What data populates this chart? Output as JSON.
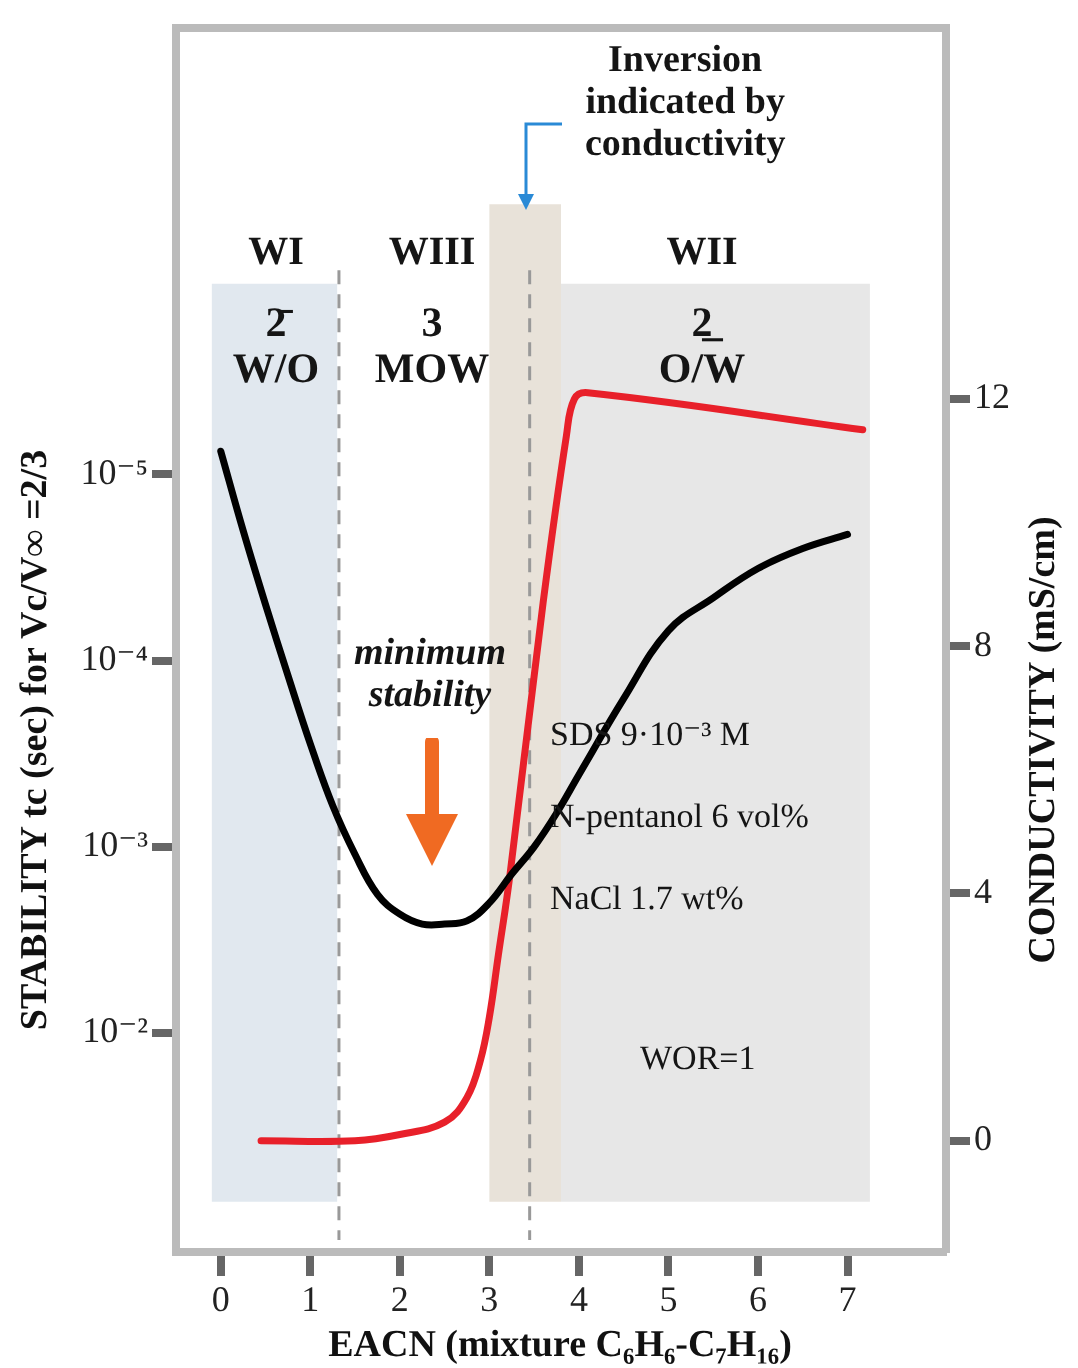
{
  "chart_data": {
    "type": "line",
    "xlabel": "EACN (mixture C₆H₆-C₇H₁₆)",
    "ylabel": "STABILITY tc (sec) for Vc/V∞ =2/3",
    "y2label": "CONDUCTIVITY (mS/cm)",
    "xlim": [
      -0.5,
      8.1
    ],
    "xticks": [
      0,
      1,
      2,
      3,
      4,
      5,
      6,
      7
    ],
    "log": "y",
    "ylim": [
      0.15,
      4e-08
    ],
    "yticks": [
      {
        "value": 1e-05,
        "label": "10⁻⁵"
      },
      {
        "value": 0.0001,
        "label": "10⁻⁴"
      },
      {
        "value": 0.001,
        "label": "10⁻³"
      },
      {
        "value": 0.01,
        "label": "10⁻²"
      }
    ],
    "y2lim": [
      -1.8,
      18
    ],
    "y2ticks": [
      0,
      4,
      8,
      12
    ],
    "series": [
      {
        "color": "#000000",
        "x": [
          0,
          0.25,
          0.5,
          0.75,
          1,
          1.25,
          1.5,
          1.75,
          2,
          2.25,
          2.5,
          2.75,
          3,
          3.25,
          3.5,
          3.75,
          4,
          4.5,
          5,
          5.5,
          6,
          6.5,
          7
        ],
        "values": [
          7.5e-06,
          2e-05,
          5e-05,
          0.00012,
          0.00028,
          0.0006,
          0.0011,
          0.0018,
          0.0023,
          0.0026,
          0.0026,
          0.0025,
          0.002,
          0.0014,
          0.001,
          0.00066,
          0.00041,
          0.00016,
          6.9e-05,
          4.6e-05,
          3.2e-05,
          2.5e-05,
          2.1e-05
        ]
      },
      {
        "axis": "y2",
        "color": "#e8202a",
        "x": [
          0.45,
          1.5,
          2.0,
          2.5,
          2.75,
          2.9,
          3.0,
          3.1,
          3.23,
          3.6,
          3.86,
          3.95,
          4.1,
          7.17
        ],
        "values": [
          0,
          0,
          0.1,
          0.3,
          0.7,
          1.3,
          2.0,
          3.0,
          4.3,
          8.7,
          11.4,
          12.0,
          12.1,
          11.5
        ]
      }
    ],
    "bands": [
      {
        "axis": "x",
        "from": -0.1,
        "to": 1.3,
        "color": "#e1e8ef"
      },
      {
        "axis": "x",
        "from": 3.0,
        "to": 3.8,
        "color": "#e8e2d9"
      },
      {
        "axis": "x",
        "from": 3.8,
        "to": 7.25,
        "color": "#e7e7e7"
      }
    ],
    "ref_lines": [
      {
        "axis": "x",
        "value": 1.32,
        "color": "#999999",
        "line_style": "dashed"
      },
      {
        "axis": "x",
        "value": 3.45,
        "color": "#999999",
        "line_style": "dashed"
      }
    ],
    "annotations": [
      {
        "text": "Inversion\nindicated by\nconductivity",
        "x": 3.4,
        "y": 3.7e-07
      },
      "WI",
      "WIII",
      "WII",
      "2̄\nW/O",
      "3\nMOW",
      "2̲\nO/W",
      "minimum\nstability",
      "SDS 9·10⁻³ M",
      "N-pentanol 6 vol%",
      "NaCl 1.7 wt%",
      "WOR=1"
    ]
  }
}
